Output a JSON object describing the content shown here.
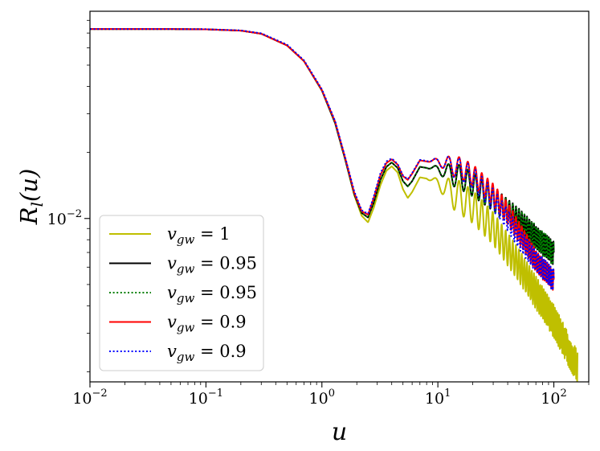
{
  "chart_data": {
    "type": "line",
    "title": "",
    "xlabel": "u",
    "ylabel": "R_l(u)",
    "xscale": "log",
    "yscale": "log",
    "xlim": [
      0.01,
      200
    ],
    "ylim": [
      0.0018,
      0.088
    ],
    "grid": false,
    "legend_position": "lower-left",
    "x_ticks": [
      {
        "value": 0.01,
        "base": "10",
        "exp": "−2"
      },
      {
        "value": 0.1,
        "base": "10",
        "exp": "−1"
      },
      {
        "value": 1,
        "base": "10",
        "exp": "0"
      },
      {
        "value": 10,
        "base": "10",
        "exp": "1"
      },
      {
        "value": 100,
        "base": "10",
        "exp": "2"
      }
    ],
    "y_ticks": [
      {
        "value": 0.01,
        "base": "10",
        "exp": "−2"
      }
    ],
    "series": [
      {
        "name": "v_gw = 1",
        "legend_main": "v",
        "legend_sub": "gw",
        "legend_rest": " = 1",
        "color": "#bfbf00",
        "dash": "solid",
        "branch_amp": 0,
        "osc_amp": 0.075,
        "x": [
          0.01,
          0.05,
          0.1,
          0.2,
          0.3,
          0.5,
          0.7,
          1.0,
          1.3,
          1.6,
          1.9,
          2.2,
          2.5,
          2.8,
          3.2,
          3.6,
          4.0,
          4.5,
          5.0,
          5.5,
          6.0,
          7.0,
          8.0,
          10.0,
          13.0,
          16.0,
          20.0,
          30.0,
          50.0,
          100.0,
          160.0
        ],
        "y": [
          0.073,
          0.073,
          0.0728,
          0.0718,
          0.0695,
          0.0615,
          0.0522,
          0.0383,
          0.0272,
          0.0183,
          0.0128,
          0.0103,
          0.0096,
          0.0112,
          0.0142,
          0.0165,
          0.0173,
          0.0162,
          0.0136,
          0.0124,
          0.0132,
          0.0154,
          0.0152,
          0.0145,
          0.0132,
          0.0123,
          0.0113,
          0.009,
          0.0061,
          0.0034,
          0.0021
        ]
      },
      {
        "name": "v_gw = 0.95",
        "legend_main": "v",
        "legend_sub": "gw",
        "legend_rest": " = 0.95",
        "color": "#000000",
        "dash": "solid",
        "branch_amp": 0,
        "osc_amp": 0.055,
        "x": [
          0.01,
          0.05,
          0.1,
          0.2,
          0.3,
          0.5,
          0.7,
          1.0,
          1.3,
          1.6,
          1.9,
          2.2,
          2.5,
          2.8,
          3.2,
          3.6,
          4.0,
          4.5,
          5.0,
          5.5,
          6.0,
          7.0,
          8.0,
          10.0,
          13.0,
          16.0,
          20.0,
          30.0,
          40.0,
          50.0,
          70.0,
          100.0
        ],
        "y": [
          0.073,
          0.073,
          0.0728,
          0.0718,
          0.0695,
          0.0615,
          0.0522,
          0.0383,
          0.0272,
          0.0183,
          0.0129,
          0.0106,
          0.0101,
          0.0118,
          0.015,
          0.0172,
          0.018,
          0.017,
          0.0148,
          0.014,
          0.0148,
          0.0172,
          0.017,
          0.0168,
          0.016,
          0.0153,
          0.0143,
          0.0123,
          0.0108,
          0.0098,
          0.0082,
          0.0069
        ]
      },
      {
        "name": "v_gw = 0.95",
        "legend_main": "v",
        "legend_sub": "gw",
        "legend_rest": " = 0.95",
        "color": "#008000",
        "dash": "dotted",
        "branch_amp": 0,
        "osc_amp": 0.055,
        "x": [
          0.01,
          0.05,
          0.1,
          0.2,
          0.3,
          0.5,
          0.7,
          1.0,
          1.3,
          1.6,
          1.9,
          2.2,
          2.5,
          2.8,
          3.2,
          3.6,
          4.0,
          4.5,
          5.0,
          5.5,
          6.0,
          7.0,
          8.0,
          10.0,
          13.0,
          16.0,
          20.0,
          30.0,
          40.0,
          50.0,
          70.0,
          100.0
        ],
        "y": [
          0.073,
          0.073,
          0.0728,
          0.0718,
          0.0695,
          0.0615,
          0.0522,
          0.0383,
          0.0272,
          0.0183,
          0.0129,
          0.0106,
          0.0101,
          0.0118,
          0.015,
          0.0172,
          0.018,
          0.017,
          0.0148,
          0.014,
          0.0148,
          0.0172,
          0.017,
          0.0168,
          0.016,
          0.0153,
          0.0143,
          0.0123,
          0.0108,
          0.0098,
          0.0082,
          0.0069
        ]
      },
      {
        "name": "v_gw = 0.9",
        "legend_main": "v",
        "legend_sub": "gw",
        "legend_rest": " = 0.9",
        "color": "#ff0000",
        "dash": "solid",
        "branch_amp": 0.04,
        "osc_amp": 0.05,
        "x": [
          0.01,
          0.05,
          0.1,
          0.2,
          0.3,
          0.5,
          0.7,
          1.0,
          1.3,
          1.6,
          1.9,
          2.2,
          2.5,
          2.8,
          3.2,
          3.6,
          4.0,
          4.5,
          5.0,
          5.5,
          6.0,
          7.0,
          8.0,
          10.0,
          13.0,
          16.0,
          20.0,
          30.0,
          40.0,
          50.0,
          70.0,
          100.0
        ],
        "y": [
          0.073,
          0.073,
          0.0728,
          0.0718,
          0.0695,
          0.0615,
          0.0522,
          0.0385,
          0.0276,
          0.0186,
          0.0131,
          0.0108,
          0.0104,
          0.0124,
          0.0158,
          0.0179,
          0.0186,
          0.0176,
          0.0156,
          0.015,
          0.016,
          0.0184,
          0.0182,
          0.0182,
          0.0175,
          0.0167,
          0.0155,
          0.0125,
          0.0102,
          0.0084,
          0.0064,
          0.0052
        ]
      },
      {
        "name": "v_gw = 0.9",
        "legend_main": "v",
        "legend_sub": "gw",
        "legend_rest": " = 0.9",
        "color": "#0000ff",
        "dash": "dotted",
        "branch_amp": -0.04,
        "osc_amp": 0.05,
        "x": [
          0.01,
          0.05,
          0.1,
          0.2,
          0.3,
          0.5,
          0.7,
          1.0,
          1.3,
          1.6,
          1.9,
          2.2,
          2.5,
          2.8,
          3.2,
          3.6,
          4.0,
          4.5,
          5.0,
          5.5,
          6.0,
          7.0,
          8.0,
          10.0,
          13.0,
          16.0,
          20.0,
          30.0,
          40.0,
          50.0,
          70.0,
          100.0
        ],
        "y": [
          0.073,
          0.073,
          0.0729,
          0.072,
          0.0698,
          0.062,
          0.0526,
          0.0388,
          0.0278,
          0.0187,
          0.0133,
          0.0109,
          0.0105,
          0.0126,
          0.0161,
          0.0182,
          0.0188,
          0.0177,
          0.0157,
          0.0151,
          0.0161,
          0.0185,
          0.0183,
          0.0182,
          0.0175,
          0.0167,
          0.0155,
          0.0125,
          0.0102,
          0.0084,
          0.0064,
          0.0052
        ]
      }
    ]
  }
}
